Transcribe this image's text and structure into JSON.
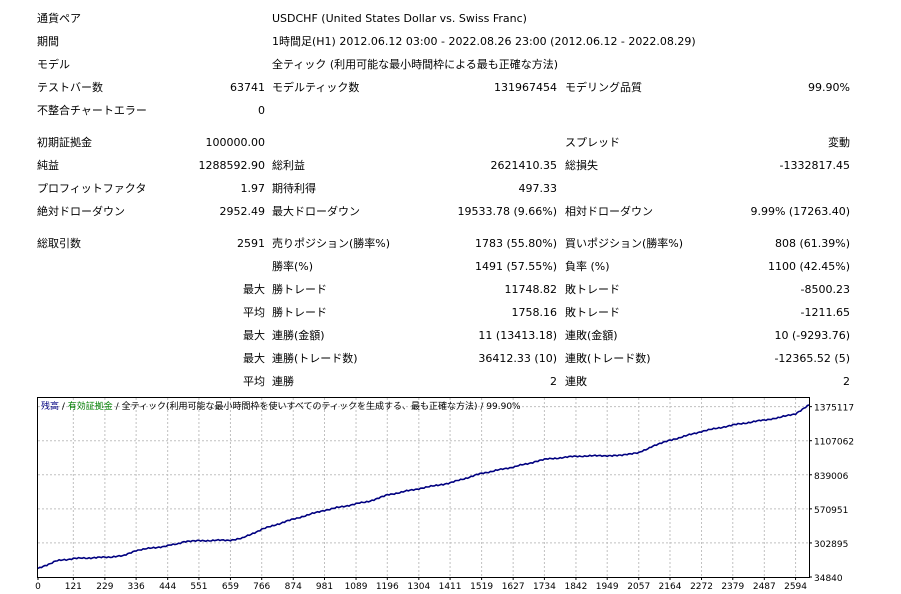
{
  "colors": {
    "balance": "#000080",
    "equity": "#008000",
    "grid": "#c0c0c0"
  },
  "header": {
    "symbol_label": "通貨ペア",
    "symbol_value": "USDCHF (United States Dollar vs. Swiss Franc)",
    "period_label": "期間",
    "period_value": "1時間足(H1) 2012.06.12 03:00 - 2022.08.26 23:00 (2012.06.12 - 2022.08.29)",
    "model_label": "モデル",
    "model_value": "全ティック (利用可能な最小時間枠による最も正確な方法)",
    "bars_label": "テストバー数",
    "bars_value": "63741",
    "ticks_label": "モデルティック数",
    "ticks_value": "131967454",
    "quality_label": "モデリング品質",
    "quality_value": "99.90%",
    "errors_label": "不整合チャートエラー",
    "errors_value": "0"
  },
  "stats": {
    "deposit_label": "初期証拠金",
    "deposit_value": "100000.00",
    "spread_label": "スプレッド",
    "spread_value": "変動",
    "net_label": "純益",
    "net_value": "1288592.90",
    "gross_profit_label": "総利益",
    "gross_profit_value": "2621410.35",
    "gross_loss_label": "総損失",
    "gross_loss_value": "-1332817.45",
    "pf_label": "プロフィットファクタ",
    "pf_value": "1.97",
    "expected_label": "期待利得",
    "expected_value": "497.33",
    "abs_dd_label": "絶対ドローダウン",
    "abs_dd_value": "2952.49",
    "max_dd_label": "最大ドローダウン",
    "max_dd_value": "19533.78 (9.66%)",
    "rel_dd_label": "相対ドローダウン",
    "rel_dd_value": "9.99% (17263.40)"
  },
  "trades": {
    "total_label": "総取引数",
    "total_value": "2591",
    "short_label": "売りポジション(勝率%)",
    "short_value": "1783 (55.80%)",
    "long_label": "買いポジション(勝率%)",
    "long_value": "808 (61.39%)",
    "win_label": "勝率(%)",
    "win_value": "1491 (57.55%)",
    "loss_label": "負率 (%)",
    "loss_value": "1100 (42.45%)",
    "q_max": "最大",
    "q_avg": "平均",
    "largest_win_label": "勝トレード",
    "largest_win_value": "11748.82",
    "largest_loss_label": "敗トレード",
    "largest_loss_value": "-8500.23",
    "avg_win_label": "勝トレード",
    "avg_win_value": "1758.16",
    "avg_loss_label": "敗トレード",
    "avg_loss_value": "-1211.65",
    "max_consec_wins_label": "連勝(金額)",
    "max_consec_wins_value": "11 (13413.18)",
    "max_consec_losses_label": "連敗(金額)",
    "max_consec_losses_value": "10 (-9293.76)",
    "max_consec_profit_label": "連勝(トレード数)",
    "max_consec_profit_value": "36412.33 (10)",
    "max_consec_loss_label": "連敗(トレード数)",
    "max_consec_loss_value": "-12365.52 (5)",
    "avg_consec_wins_label": "連勝",
    "avg_consec_wins_value": "2",
    "avg_consec_losses_label": "連敗",
    "avg_consec_losses_value": "2"
  },
  "legend": {
    "balance": "残高",
    "sep1": " / ",
    "equity": "有効証拠金",
    "sep2": " / ",
    "model": "全ティック(利用可能な最小時間枠を使いすべてのティックを生成する、最も正確な方法)",
    "sep3": " / ",
    "quality": "99.90%"
  },
  "chart_data": {
    "type": "line",
    "x_ticks": [
      0,
      121,
      229,
      336,
      444,
      551,
      659,
      766,
      874,
      981,
      1089,
      1196,
      1304,
      1411,
      1519,
      1627,
      1734,
      1842,
      1949,
      2057,
      2164,
      2272,
      2379,
      2487,
      2594
    ],
    "y_ticks": [
      1375117,
      1107062,
      839006,
      570951,
      302895,
      34840
    ],
    "xlim": [
      0,
      2640
    ],
    "ylim": [
      34840,
      1443000
    ],
    "series": [
      {
        "name": "残高",
        "x": [
          0,
          60,
          121,
          229,
          290,
          336,
          444,
          500,
          551,
          659,
          700,
          766,
          874,
          981,
          1089,
          1150,
          1196,
          1304,
          1411,
          1519,
          1627,
          1700,
          1734,
          1842,
          1949,
          2000,
          2057,
          2100,
          2164,
          2272,
          2379,
          2487,
          2540,
          2594,
          2640
        ],
        "values": [
          100000,
          160000,
          180000,
          190000,
          200000,
          245000,
          280000,
          310000,
          320000,
          325000,
          340000,
          410000,
          490000,
          560000,
          610000,
          640000,
          680000,
          730000,
          775000,
          850000,
          900000,
          940000,
          960000,
          985000,
          990000,
          995000,
          1010000,
          1060000,
          1110000,
          1180000,
          1230000,
          1270000,
          1290000,
          1320000,
          1389000
        ]
      }
    ]
  }
}
